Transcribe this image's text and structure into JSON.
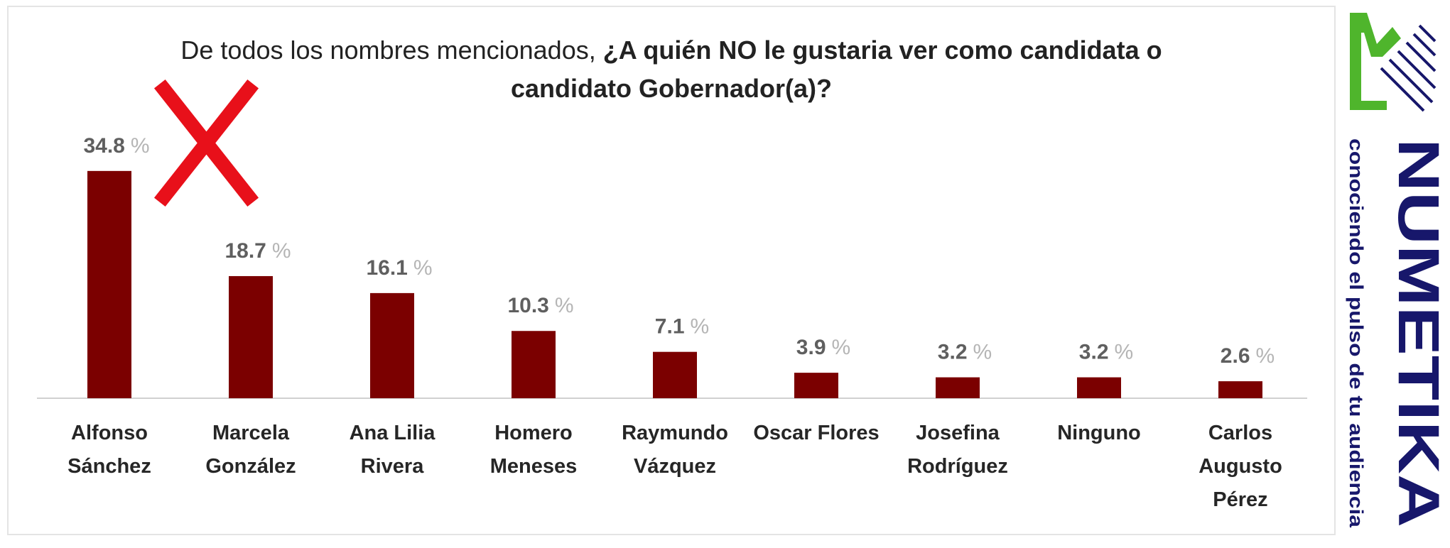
{
  "chart_data": {
    "type": "bar",
    "title_normal": "De todos los nombres mencionados,",
    "title_bold_line1": "¿A quién NO le gustaria ver como candidata o",
    "title_bold_line2": "candidato Gobernador(a)?",
    "categories": [
      [
        "Alfonso",
        "Sánchez"
      ],
      [
        "Marcela",
        "González"
      ],
      [
        "Ana Lilia",
        "Rivera"
      ],
      [
        "Homero",
        "Meneses"
      ],
      [
        "Raymundo",
        "Vázquez"
      ],
      [
        "Oscar Flores"
      ],
      [
        "Josefina",
        "Rodríguez"
      ],
      [
        "Ninguno"
      ],
      [
        "Carlos",
        "Augusto",
        "Pérez"
      ]
    ],
    "values": [
      34.8,
      18.7,
      16.1,
      10.3,
      7.1,
      3.9,
      3.2,
      3.2,
      2.6
    ],
    "value_labels": [
      "34.8",
      "18.7",
      "16.1",
      "10.3",
      "7.1",
      "3.9",
      "3.2",
      "3.2",
      "2.6"
    ],
    "unit": "%",
    "ylim": [
      0,
      40
    ],
    "grid": false,
    "bar_color": "#7b0000",
    "highlight_color": "#e8101a"
  },
  "brand": {
    "name": "NUMETIKA",
    "tagline": "conociendo el pulso de tu audiencia",
    "colors": {
      "green": "#4fb52c",
      "navy": "#17176b"
    }
  }
}
